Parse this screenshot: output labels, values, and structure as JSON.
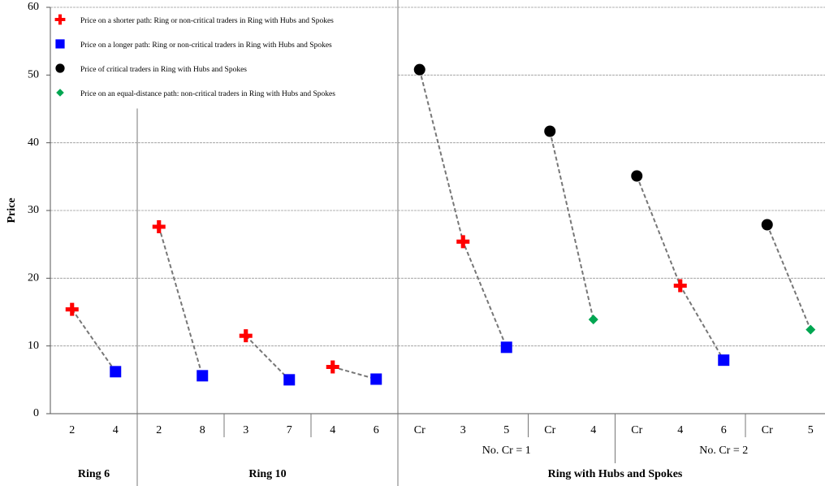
{
  "chart_data": {
    "type": "scatter",
    "y_label": "Price",
    "ylim": [
      0,
      60
    ],
    "yticks": [
      0,
      10,
      20,
      30,
      40,
      50,
      60
    ],
    "grid": true,
    "legend": "upper left",
    "categories": [
      "2",
      "4",
      "2",
      "8",
      "3",
      "7",
      "4",
      "6",
      "Cr",
      "3",
      "5",
      "Cr",
      "4",
      "Cr",
      "4",
      "6",
      "Cr",
      "5"
    ],
    "x_subgroups": [
      "No. Cr = 1",
      "No. Cr = 2"
    ],
    "x_groups": [
      "Ring 6",
      "Ring 10",
      "Ring with Hubs and Spokes"
    ],
    "series": [
      {
        "name": "Price on a shorter path: Ring or non-critical traders in Ring with Hubs and Spokes",
        "color": "#ff0000",
        "marker": "cross",
        "values": [
          15.4,
          null,
          27.6,
          null,
          11.5,
          null,
          6.9,
          null,
          null,
          25.4,
          null,
          null,
          null,
          null,
          18.9,
          null,
          null,
          null
        ]
      },
      {
        "name": "Price on a longer path: Ring or non-critical traders in Ring with Hubs and Spokes",
        "color": "#0000ff",
        "marker": "square",
        "values": [
          null,
          6.2,
          null,
          5.6,
          null,
          5.0,
          null,
          5.1,
          null,
          null,
          9.8,
          null,
          null,
          null,
          null,
          7.9,
          null,
          null
        ]
      },
      {
        "name": "Price of critical traders in Ring with Hubs and Spokes",
        "color": "#000000",
        "marker": "circle",
        "values": [
          null,
          null,
          null,
          null,
          null,
          null,
          null,
          null,
          50.8,
          null,
          null,
          41.7,
          null,
          35.1,
          null,
          null,
          27.9,
          null
        ]
      },
      {
        "name": "Price on an equal-distance path: non-critical traders in Ring with Hubs and Spokes",
        "color": "#00a651",
        "marker": "diamond",
        "values": [
          null,
          null,
          null,
          null,
          null,
          null,
          null,
          null,
          null,
          null,
          null,
          null,
          13.9,
          null,
          null,
          null,
          null,
          12.4
        ]
      }
    ]
  }
}
